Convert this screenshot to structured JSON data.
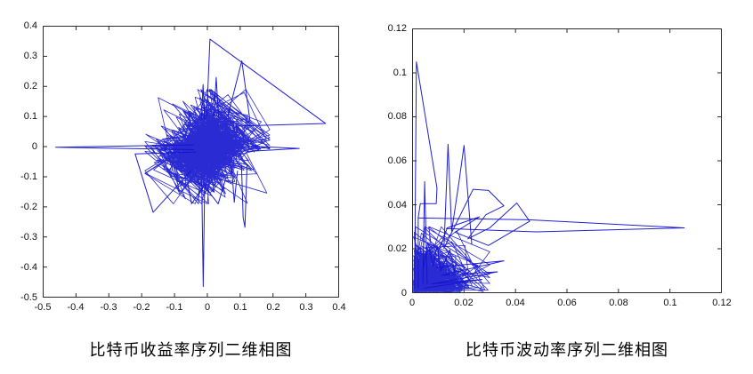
{
  "figure": {
    "background": "#ffffff"
  },
  "chart_data": [
    {
      "type": "line",
      "subtype": "phase_portrait",
      "title": "比特币收益率序列二维相图",
      "xlabel": "",
      "ylabel": "",
      "xlim": [
        -0.5,
        0.4
      ],
      "ylim": [
        -0.5,
        0.4
      ],
      "xticks": [
        "-0.5",
        "-0.4",
        "-0.3",
        "-0.2",
        "-0.1",
        "0",
        "0.1",
        "0.2",
        "0.3",
        "0.4"
      ],
      "yticks": [
        "0.4",
        "0.3",
        "0.2",
        "0.1",
        "0",
        "-0.1",
        "-0.2",
        "-0.3",
        "-0.4",
        "-0.5"
      ],
      "grid": false,
      "legend": null,
      "line_color": "#1414cf",
      "axis_color": "#2b2b2b",
      "tick_length": 4,
      "cluster": {
        "distribution": "laplace",
        "center": [
          0,
          0
        ],
        "scale": 0.042,
        "clip": 0.19,
        "n": 1400,
        "seed": 1337
      },
      "paths": [
        [
          [
            -0.04,
            0.006
          ],
          [
            -0.462,
            -0.002
          ],
          [
            -0.04,
            -0.01
          ]
        ],
        [
          [
            -0.008,
            -0.12
          ],
          [
            -0.0125,
            -0.465
          ],
          [
            -0.017,
            -0.12
          ]
        ],
        [
          [
            -0.002,
            0.1
          ],
          [
            0.008,
            0.357
          ],
          [
            0.36,
            0.077
          ],
          [
            0.085,
            0.068
          ]
        ],
        [
          [
            0.062,
            0.1
          ],
          [
            0.105,
            0.285
          ],
          [
            0.13,
            0.085
          ]
        ],
        [
          [
            0.02,
            0.1
          ],
          [
            0.027,
            0.23
          ],
          [
            0.034,
            0.1
          ]
        ],
        [
          [
            -0.018,
            0.09
          ],
          [
            -0.013,
            0.206
          ],
          [
            -0.008,
            0.09
          ]
        ],
        [
          [
            0.12,
            0.002
          ],
          [
            0.28,
            -0.006
          ],
          [
            0.12,
            -0.016
          ]
        ],
        [
          [
            -0.035,
            -0.018
          ],
          [
            -0.22,
            -0.024
          ],
          [
            -0.165,
            -0.218
          ],
          [
            -0.05,
            -0.08
          ]
        ],
        [
          [
            -0.06,
            -0.12
          ],
          [
            -0.048,
            -0.19
          ],
          [
            -0.01,
            -0.13
          ],
          [
            0.033,
            -0.19
          ],
          [
            0.055,
            -0.11
          ]
        ],
        [
          [
            0.075,
            -0.08
          ],
          [
            0.082,
            -0.185
          ],
          [
            0.092,
            -0.08
          ]
        ],
        [
          [
            0.104,
            -0.06
          ],
          [
            0.109,
            -0.235
          ],
          [
            0.1145,
            -0.268
          ],
          [
            0.121,
            -0.06
          ]
        ]
      ]
    },
    {
      "type": "line",
      "subtype": "phase_portrait",
      "title": "比特币波动率序列二维相图",
      "xlabel": "",
      "ylabel": "",
      "xlim": [
        0,
        0.12
      ],
      "ylim": [
        0,
        0.12
      ],
      "xticks": [
        "0",
        "0.02",
        "0.04",
        "0.06",
        "0.08",
        "0.1",
        "0.12"
      ],
      "yticks": [
        "0.12",
        "0.1",
        "0.08",
        "0.06",
        "0.04",
        "0.02",
        "0"
      ],
      "grid": false,
      "legend": null,
      "line_color": "#1414cf",
      "axis_color": "#2b2b2b",
      "tick_length": 4,
      "cluster": {
        "distribution": "exponential",
        "offset": 0.0003,
        "scale": 0.0052,
        "clip": 0.03,
        "n": 1200,
        "seed": 2024
      },
      "paths": [
        [
          [
            0.0008,
            0.002
          ],
          [
            0.0015,
            0.105
          ],
          [
            0.0095,
            0.0475
          ],
          [
            0.0092,
            0.0405
          ],
          [
            0.003,
            0.0405
          ],
          [
            0.0022,
            0.034
          ],
          [
            0.0022,
            0.002
          ]
        ],
        [
          [
            0.0022,
            0.034
          ],
          [
            0.045,
            0.0332
          ],
          [
            0.1056,
            0.0295
          ],
          [
            0.048,
            0.0277
          ],
          [
            0.013,
            0.0292
          ]
        ],
        [
          [
            0.0122,
            0.02
          ],
          [
            0.0138,
            0.0675
          ],
          [
            0.0152,
            0.028
          ],
          [
            0.018,
            0.05
          ],
          [
            0.02,
            0.067
          ],
          [
            0.023,
            0.022
          ]
        ],
        [
          [
            0.0125,
            0.021
          ],
          [
            0.0235,
            0.047
          ],
          [
            0.0295,
            0.0465
          ],
          [
            0.0355,
            0.0395
          ],
          [
            0.0285,
            0.0355
          ],
          [
            0.0215,
            0.0245
          ],
          [
            0.03,
            0.0295
          ],
          [
            0.0405,
            0.0408
          ],
          [
            0.0455,
            0.0325
          ],
          [
            0.0295,
            0.0215
          ],
          [
            0.0165,
            0.0275
          ],
          [
            0.026,
            0.0345
          ],
          [
            0.0135,
            0.0295
          ],
          [
            0.0105,
            0.02
          ]
        ],
        [
          [
            0.004,
            0.004
          ],
          [
            0.0047,
            0.0505
          ],
          [
            0.0057,
            0.004
          ]
        ],
        [
          [
            0.009,
            0.0115
          ],
          [
            0.0355,
            0.0145
          ],
          [
            0.0115,
            0.008
          ],
          [
            0.033,
            0.0095
          ],
          [
            0.0075,
            0.004
          ],
          [
            0.027,
            0.006
          ],
          [
            0.0045,
            0.002
          ]
        ],
        [
          [
            0.004,
            0.01
          ],
          [
            0.006,
            0.023
          ],
          [
            0.008,
            0.012
          ],
          [
            0.0095,
            0.0215
          ],
          [
            0.011,
            0.01
          ],
          [
            0.0145,
            0.0195
          ],
          [
            0.0165,
            0.009
          ]
        ]
      ]
    }
  ]
}
